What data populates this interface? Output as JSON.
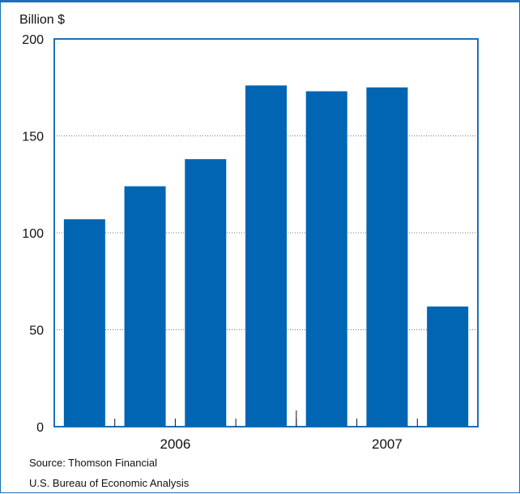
{
  "chart_data": {
    "type": "bar",
    "ylabel": "Billion $",
    "ylim": [
      0,
      200
    ],
    "yticks": [
      0,
      50,
      100,
      150,
      200
    ],
    "grid": true,
    "bar_color": "#0065b3",
    "values": [
      107,
      124,
      138,
      176,
      173,
      175,
      62
    ],
    "x_group_labels": [
      "2006",
      "2007"
    ],
    "source_lines": [
      "Source:  Thomson Financial",
      "U.S. Bureau of Economic Analysis"
    ]
  }
}
